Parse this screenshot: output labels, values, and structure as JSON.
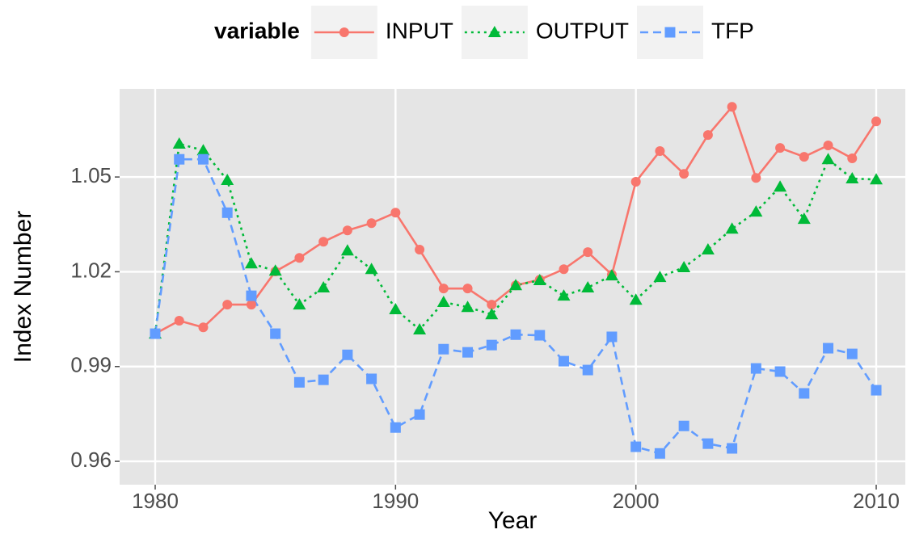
{
  "chart_data": {
    "type": "line",
    "x_label": "Year",
    "y_label": "Index Number",
    "legend_title": "variable",
    "x": [
      1980,
      1981,
      1982,
      1983,
      1984,
      1985,
      1986,
      1987,
      1988,
      1989,
      1990,
      1991,
      1992,
      1993,
      1994,
      1995,
      1996,
      1997,
      1998,
      1999,
      2000,
      2001,
      2002,
      2003,
      2004,
      2005,
      2006,
      2007,
      2008,
      2009,
      2010
    ],
    "series": [
      {
        "name": "INPUT",
        "color": "#f8766d",
        "line_style": "solid",
        "marker": "circle",
        "values": [
          1.0004,
          1.0045,
          1.0024,
          1.0096,
          1.0096,
          1.0201,
          1.0244,
          1.0295,
          1.0331,
          1.0354,
          1.0387,
          1.027,
          1.0147,
          1.0147,
          1.0096,
          1.0157,
          1.0175,
          1.0208,
          1.0262,
          1.0191,
          1.0485,
          1.0582,
          1.051,
          1.0633,
          1.0722,
          1.0497,
          1.0592,
          1.0564,
          1.06,
          1.0559,
          1.0676
        ]
      },
      {
        "name": "OUTPUT",
        "color": "#00ba38",
        "line_style": "dotted",
        "marker": "triangle",
        "values": [
          1.0004,
          1.0605,
          1.0584,
          1.049,
          1.0226,
          1.0203,
          1.0096,
          1.015,
          1.0267,
          1.0208,
          1.0081,
          1.0017,
          1.0104,
          1.0088,
          1.0065,
          1.0157,
          1.0173,
          1.0124,
          1.015,
          1.0188,
          1.0111,
          1.0183,
          1.0214,
          1.027,
          1.0336,
          1.039,
          1.0469,
          1.0367,
          1.0556,
          1.0495,
          1.0492
        ]
      },
      {
        "name": "TFP",
        "color": "#619cff",
        "line_style": "dashed",
        "marker": "square",
        "values": [
          1.0004,
          1.0556,
          1.0556,
          1.0387,
          1.0124,
          1.0004,
          0.985,
          0.9858,
          0.9937,
          0.9861,
          0.9707,
          0.9748,
          0.9955,
          0.9945,
          0.9968,
          1.0001,
          0.9999,
          0.9917,
          0.9889,
          0.9994,
          0.9646,
          0.9625,
          0.9712,
          0.9656,
          0.9641,
          0.9894,
          0.9884,
          0.9815,
          0.9958,
          0.994,
          0.9825
        ]
      }
    ],
    "xlim": [
      1978.52,
      2011.21
    ],
    "xticks": [
      1980,
      1990,
      2000,
      2010
    ],
    "ylim": [
      0.9526,
      1.0779
    ],
    "yticks": [
      {
        "value": 0.96,
        "label": "0.96"
      },
      0.99,
      1.02,
      1.05
    ],
    "grid": true,
    "legend_position": "top"
  }
}
